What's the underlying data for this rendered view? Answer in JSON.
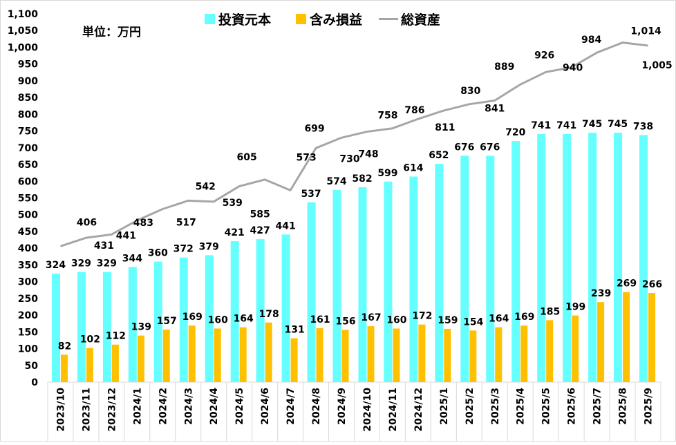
{
  "chart_data": {
    "type": "bar+line",
    "unit_note": "単位：万円",
    "categories": [
      "2023/10",
      "2023/11",
      "2023/12",
      "2024/1",
      "2024/2",
      "2024/3",
      "2024/4",
      "2024/5",
      "2024/6",
      "2024/7",
      "2024/8",
      "2024/9",
      "2024/10",
      "2024/11",
      "2024/12",
      "2025/1",
      "2025/2",
      "2025/3",
      "2025/4",
      "2025/5",
      "2025/6",
      "2025/7",
      "2025/8",
      "2025/9"
    ],
    "series": [
      {
        "name": "投資元本",
        "type": "bar",
        "color": "#66FFFF",
        "values": [
          324,
          329,
          329,
          344,
          360,
          372,
          379,
          421,
          427,
          441,
          537,
          574,
          582,
          599,
          614,
          652,
          676,
          676,
          720,
          741,
          741,
          745,
          745,
          738
        ]
      },
      {
        "name": "含み損益",
        "type": "bar",
        "color": "#FFC000",
        "values": [
          82,
          102,
          112,
          139,
          157,
          169,
          160,
          164,
          178,
          131,
          161,
          156,
          167,
          160,
          172,
          159,
          154,
          164,
          169,
          185,
          199,
          239,
          269,
          266
        ]
      },
      {
        "name": "総資産",
        "type": "line",
        "color": "#A6A6A6",
        "values": [
          406,
          431,
          441,
          483,
          517,
          542,
          539,
          585,
          605,
          573,
          699,
          730,
          748,
          758,
          786,
          811,
          830,
          841,
          889,
          926,
          940,
          984,
          1014,
          1005
        ]
      }
    ],
    "ylim": [
      0,
      1100
    ],
    "yticks": [
      0,
      50,
      100,
      150,
      200,
      250,
      300,
      350,
      400,
      450,
      500,
      550,
      600,
      650,
      700,
      750,
      800,
      850,
      900,
      950,
      1000,
      1050,
      1100
    ],
    "grid": false,
    "legend": "top-center"
  }
}
